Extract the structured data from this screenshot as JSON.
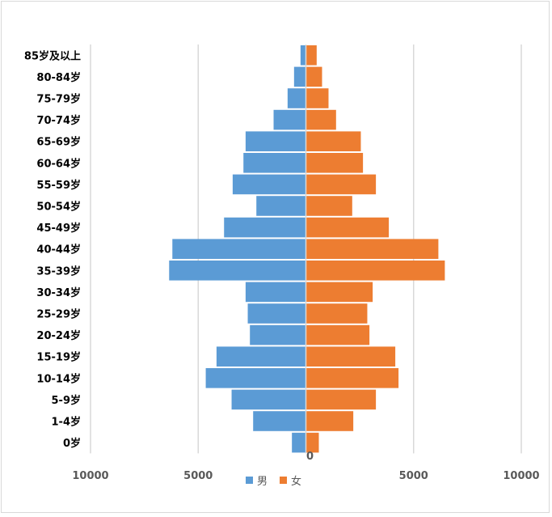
{
  "chart_data": {
    "type": "bar",
    "orientation": "horizontal",
    "layout": "population-pyramid",
    "categories": [
      "0岁",
      "1-4岁",
      "5-9岁",
      "10-14岁",
      "15-19岁",
      "20-24岁",
      "25-29岁",
      "30-34岁",
      "35-39岁",
      "40-44岁",
      "45-49岁",
      "50-54岁",
      "55-59岁",
      "60-64岁",
      "65-69岁",
      "70-74岁",
      "75-79岁",
      "80-84岁",
      "85岁及以上"
    ],
    "series": [
      {
        "name": "男",
        "color": "#5b9bd5",
        "side": "left",
        "values": [
          650,
          2450,
          3450,
          4650,
          4150,
          2600,
          2700,
          2800,
          6350,
          6200,
          3800,
          2300,
          3400,
          2900,
          2800,
          1500,
          850,
          550,
          250
        ]
      },
      {
        "name": "女",
        "color": "#ed7d31",
        "side": "right",
        "values": [
          600,
          2200,
          3250,
          4300,
          4150,
          2950,
          2850,
          3100,
          6450,
          6150,
          3850,
          2150,
          3250,
          2650,
          2550,
          1400,
          1050,
          750,
          500
        ]
      }
    ],
    "xlim": [
      -10000,
      10000
    ],
    "xticks": [
      -10000,
      -5000,
      0,
      5000,
      10000
    ],
    "xtick_labels": [
      "10000",
      "5000",
      "0",
      "5000",
      "10000"
    ],
    "gridlines": "vertical",
    "legend_position": "bottom"
  }
}
